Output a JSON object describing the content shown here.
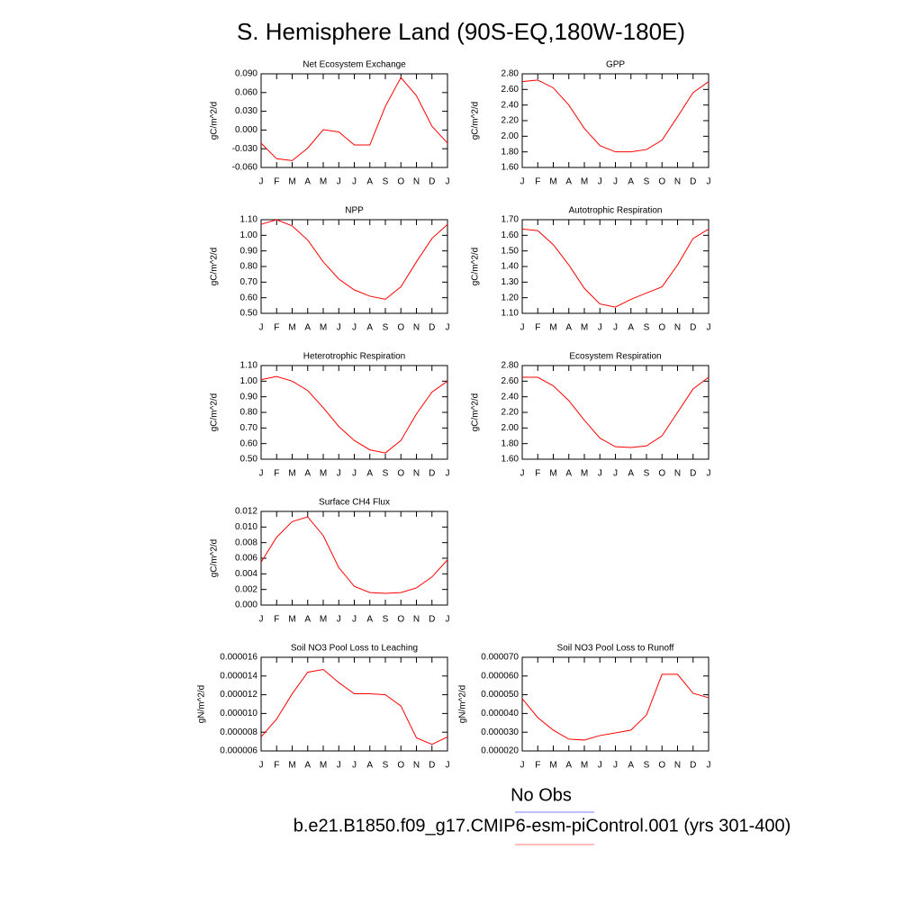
{
  "title": "S. Hemisphere Land (90S-EQ,180W-180E)",
  "legend": [
    {
      "name": "No Obs",
      "color": "#7b7bff"
    },
    {
      "name": "b.e21.B1850.f09_g17.CMIP6-esm-piControl.001 (yrs 301-400)",
      "color": "#ff7b7b"
    }
  ],
  "chart_data": [
    {
      "type": "line",
      "title": "Net Ecosystem Exchange",
      "ylabel": "gC/m^2/d",
      "categories": [
        "J",
        "F",
        "M",
        "A",
        "M",
        "J",
        "J",
        "A",
        "S",
        "O",
        "N",
        "D",
        "J"
      ],
      "series": [
        {
          "color": "#ff0000",
          "values": [
            -0.021,
            -0.046,
            -0.049,
            -0.029,
            0.0005,
            -0.003,
            -0.024,
            -0.024,
            0.038,
            0.084,
            0.055,
            0.006,
            -0.021
          ]
        }
      ],
      "ylim": [
        -0.06,
        0.09
      ],
      "yticks": [
        {
          "value": -0.06,
          "label": "-0.060"
        },
        {
          "value": -0.03,
          "label": "-0.030"
        },
        {
          "value": 0,
          "label": "0.000"
        },
        {
          "value": 0.03,
          "label": "0.030"
        },
        {
          "value": 0.06,
          "label": "0.060"
        },
        {
          "value": 0.09,
          "label": "0.090"
        }
      ]
    },
    {
      "type": "line",
      "title": "GPP",
      "ylabel": "gC/m^2/d",
      "categories": [
        "J",
        "F",
        "M",
        "A",
        "M",
        "J",
        "J",
        "A",
        "S",
        "O",
        "N",
        "D",
        "J"
      ],
      "series": [
        {
          "color": "#ff0000",
          "values": [
            2.7,
            2.72,
            2.62,
            2.4,
            2.1,
            1.88,
            1.8,
            1.8,
            1.83,
            1.95,
            2.25,
            2.56,
            2.7
          ]
        }
      ],
      "ylim": [
        1.6,
        2.8
      ],
      "yticks": [
        {
          "value": 1.6,
          "label": "1.60"
        },
        {
          "value": 1.8,
          "label": "1.80"
        },
        {
          "value": 2.0,
          "label": "2.00"
        },
        {
          "value": 2.2,
          "label": "2.20"
        },
        {
          "value": 2.4,
          "label": "2.40"
        },
        {
          "value": 2.6,
          "label": "2.60"
        },
        {
          "value": 2.8,
          "label": "2.80"
        }
      ]
    },
    {
      "type": "line",
      "title": "NPP",
      "ylabel": "gC/m^2/d",
      "categories": [
        "J",
        "F",
        "M",
        "A",
        "M",
        "J",
        "J",
        "A",
        "S",
        "O",
        "N",
        "D",
        "J"
      ],
      "series": [
        {
          "color": "#ff0000",
          "values": [
            1.07,
            1.1,
            1.06,
            0.97,
            0.83,
            0.72,
            0.65,
            0.61,
            0.59,
            0.67,
            0.83,
            0.98,
            1.07
          ]
        }
      ],
      "ylim": [
        0.5,
        1.1
      ],
      "yticks": [
        {
          "value": 0.5,
          "label": "0.50"
        },
        {
          "value": 0.6,
          "label": "0.60"
        },
        {
          "value": 0.7,
          "label": "0.70"
        },
        {
          "value": 0.8,
          "label": "0.80"
        },
        {
          "value": 0.9,
          "label": "0.90"
        },
        {
          "value": 1.0,
          "label": "1.00"
        },
        {
          "value": 1.1,
          "label": "1.10"
        }
      ]
    },
    {
      "type": "line",
      "title": "Autotrophic Respiration",
      "ylabel": "gC/m^2/d",
      "categories": [
        "J",
        "F",
        "M",
        "A",
        "M",
        "J",
        "J",
        "A",
        "S",
        "O",
        "N",
        "D",
        "J"
      ],
      "series": [
        {
          "color": "#ff0000",
          "values": [
            1.64,
            1.63,
            1.54,
            1.41,
            1.26,
            1.16,
            1.14,
            1.19,
            1.23,
            1.27,
            1.41,
            1.58,
            1.64
          ]
        }
      ],
      "ylim": [
        1.1,
        1.7
      ],
      "yticks": [
        {
          "value": 1.1,
          "label": "1.10"
        },
        {
          "value": 1.2,
          "label": "1.20"
        },
        {
          "value": 1.3,
          "label": "1.30"
        },
        {
          "value": 1.4,
          "label": "1.40"
        },
        {
          "value": 1.5,
          "label": "1.50"
        },
        {
          "value": 1.6,
          "label": "1.60"
        },
        {
          "value": 1.7,
          "label": "1.70"
        }
      ]
    },
    {
      "type": "line",
      "title": "Heterotrophic Respiration",
      "ylabel": "gC/m^2/d",
      "categories": [
        "J",
        "F",
        "M",
        "A",
        "M",
        "J",
        "J",
        "A",
        "S",
        "O",
        "N",
        "D",
        "J"
      ],
      "series": [
        {
          "color": "#ff0000",
          "values": [
            1.01,
            1.03,
            1.0,
            0.94,
            0.83,
            0.71,
            0.62,
            0.56,
            0.54,
            0.62,
            0.79,
            0.93,
            1.0
          ]
        }
      ],
      "ylim": [
        0.5,
        1.1
      ],
      "yticks": [
        {
          "value": 0.5,
          "label": "0.50"
        },
        {
          "value": 0.6,
          "label": "0.60"
        },
        {
          "value": 0.7,
          "label": "0.70"
        },
        {
          "value": 0.8,
          "label": "0.80"
        },
        {
          "value": 0.9,
          "label": "0.90"
        },
        {
          "value": 1.0,
          "label": "1.00"
        },
        {
          "value": 1.1,
          "label": "1.10"
        }
      ]
    },
    {
      "type": "line",
      "title": "Ecosystem Respiration",
      "ylabel": "gC/m^2/d",
      "categories": [
        "J",
        "F",
        "M",
        "A",
        "M",
        "J",
        "J",
        "A",
        "S",
        "O",
        "N",
        "D",
        "J"
      ],
      "series": [
        {
          "color": "#ff0000",
          "values": [
            2.65,
            2.65,
            2.54,
            2.35,
            2.1,
            1.87,
            1.76,
            1.75,
            1.77,
            1.9,
            2.2,
            2.5,
            2.65
          ]
        }
      ],
      "ylim": [
        1.6,
        2.8
      ],
      "yticks": [
        {
          "value": 1.6,
          "label": "1.60"
        },
        {
          "value": 1.8,
          "label": "1.80"
        },
        {
          "value": 2.0,
          "label": "2.00"
        },
        {
          "value": 2.2,
          "label": "2.20"
        },
        {
          "value": 2.4,
          "label": "2.40"
        },
        {
          "value": 2.6,
          "label": "2.60"
        },
        {
          "value": 2.8,
          "label": "2.80"
        }
      ]
    },
    {
      "type": "line",
      "title": "Surface CH4 Flux",
      "ylabel": "gC/m^2/d",
      "categories": [
        "J",
        "F",
        "M",
        "A",
        "M",
        "J",
        "J",
        "A",
        "S",
        "O",
        "N",
        "D",
        "J"
      ],
      "series": [
        {
          "color": "#ff0000",
          "values": [
            0.0055,
            0.0087,
            0.0107,
            0.0113,
            0.0089,
            0.0048,
            0.0024,
            0.0016,
            0.0015,
            0.0016,
            0.0022,
            0.0036,
            0.0058
          ]
        }
      ],
      "ylim": [
        0,
        0.012
      ],
      "yticks": [
        {
          "value": 0,
          "label": "0.000"
        },
        {
          "value": 0.002,
          "label": "0.002"
        },
        {
          "value": 0.004,
          "label": "0.004"
        },
        {
          "value": 0.006,
          "label": "0.006"
        },
        {
          "value": 0.008,
          "label": "0.008"
        },
        {
          "value": 0.01,
          "label": "0.010"
        },
        {
          "value": 0.012,
          "label": "0.012"
        }
      ]
    },
    {
      "type": "line",
      "title": "Soil NO3 Pool Loss to Leaching",
      "ylabel": "gN/m^2/d",
      "categories": [
        "J",
        "F",
        "M",
        "A",
        "M",
        "J",
        "J",
        "A",
        "S",
        "O",
        "N",
        "D",
        "J"
      ],
      "series": [
        {
          "color": "#ff0000",
          "values": [
            7.5e-06,
            9.4e-06,
            1.21e-05,
            1.44e-05,
            1.47e-05,
            1.33e-05,
            1.21e-05,
            1.21e-05,
            1.2e-05,
            1.08e-05,
            7.4e-06,
            6.7e-06,
            7.5e-06
          ]
        }
      ],
      "ylim": [
        6e-06,
        1.6e-05
      ],
      "yticks": [
        6e-06,
        8e-06,
        {
          "value": 1e-05,
          "label": "0.000010"
        },
        1.2e-05,
        1.4e-05,
        1.6e-05
      ]
    },
    {
      "type": "line",
      "title": "Soil NO3 Pool Loss to Runoff",
      "ylabel": "gN/m^2/d",
      "categories": [
        "J",
        "F",
        "M",
        "A",
        "M",
        "J",
        "J",
        "A",
        "S",
        "O",
        "N",
        "D",
        "J"
      ],
      "series": [
        {
          "color": "#ff0000",
          "values": [
            4.79e-05,
            3.78e-05,
            3.11e-05,
            2.63e-05,
            2.58e-05,
            2.82e-05,
            2.96e-05,
            3.11e-05,
            3.92e-05,
            6.09e-05,
            6.09e-05,
            5.08e-05,
            4.84e-05
          ]
        }
      ],
      "ylim": [
        2e-05,
        7e-05
      ],
      "yticks": [
        {
          "value": 2e-05,
          "label": "0.000020"
        },
        {
          "value": 3e-05,
          "label": "0.000030"
        },
        {
          "value": 4e-05,
          "label": "0.000040"
        },
        {
          "value": 5e-05,
          "label": "0.000050"
        },
        {
          "value": 6e-05,
          "label": "0.000060"
        },
        {
          "value": 7e-05,
          "label": "0.000070"
        }
      ]
    }
  ]
}
